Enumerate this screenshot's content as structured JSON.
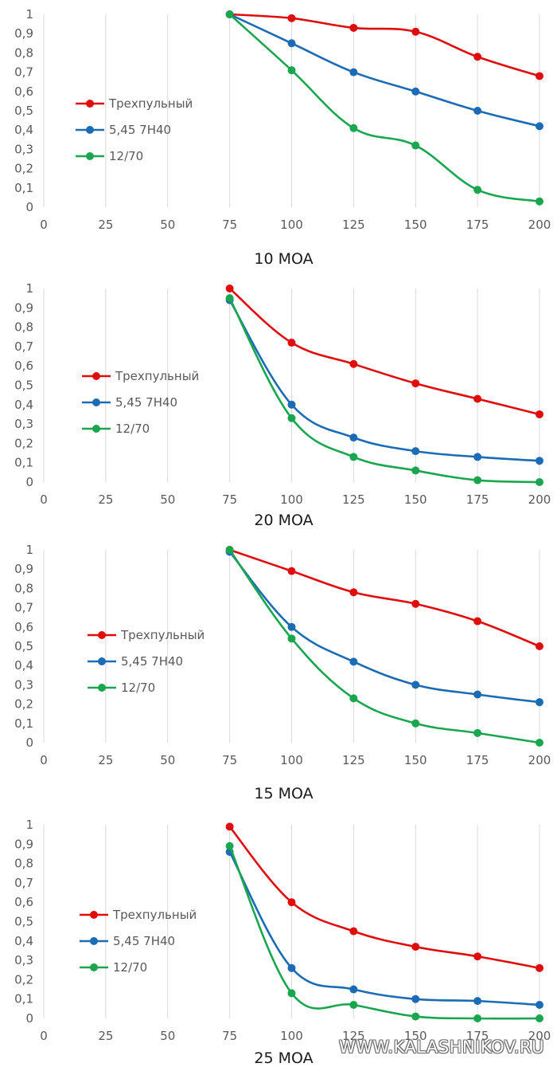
{
  "chart_data": [
    {
      "type": "line",
      "title": "10 MOA",
      "x": [
        75,
        100,
        125,
        150,
        175,
        200
      ],
      "x_ticks": [
        "0",
        "25",
        "50",
        "75",
        "100",
        "125",
        "150",
        "175",
        "200"
      ],
      "y_ticks": [
        "0",
        "0,1",
        "0,2",
        "0,3",
        "0,4",
        "0,5",
        "0,6",
        "0,7",
        "0,8",
        "0,9",
        "1"
      ],
      "xlim": [
        0,
        200
      ],
      "ylim": [
        0,
        1
      ],
      "grid": "vertical",
      "legend_position": "left",
      "series": [
        {
          "name": "Трехпульный",
          "color": "#e00c0c",
          "values": [
            1.0,
            0.98,
            0.93,
            0.91,
            0.78,
            0.68
          ]
        },
        {
          "name": "5,45 7Н40",
          "color": "#1b6cb5",
          "values": [
            1.0,
            0.85,
            0.7,
            0.6,
            0.5,
            0.42
          ]
        },
        {
          "name": "12/70",
          "color": "#1aa64f",
          "values": [
            1.0,
            0.71,
            0.41,
            0.32,
            0.09,
            0.03
          ]
        }
      ]
    },
    {
      "type": "line",
      "title": "20 MOA",
      "x": [
        75,
        100,
        125,
        150,
        175,
        200
      ],
      "x_ticks": [
        "0",
        "25",
        "50",
        "75",
        "100",
        "125",
        "150",
        "175",
        "200"
      ],
      "y_ticks": [
        "0",
        "0,1",
        "0,2",
        "0,3",
        "0,4",
        "0,5",
        "0,6",
        "0,7",
        "0,8",
        "0,9",
        "1"
      ],
      "xlim": [
        0,
        200
      ],
      "ylim": [
        0,
        1
      ],
      "grid": "vertical",
      "legend_position": "left",
      "series": [
        {
          "name": "Трехпульный",
          "color": "#e00c0c",
          "values": [
            1.0,
            0.72,
            0.61,
            0.51,
            0.43,
            0.35
          ]
        },
        {
          "name": "5,45 7Н40",
          "color": "#1b6cb5",
          "values": [
            0.94,
            0.4,
            0.23,
            0.16,
            0.13,
            0.11
          ]
        },
        {
          "name": "12/70",
          "color": "#1aa64f",
          "values": [
            0.95,
            0.33,
            0.13,
            0.06,
            0.01,
            0.0
          ]
        }
      ]
    },
    {
      "type": "line",
      "title": "15 MOA",
      "x": [
        75,
        100,
        125,
        150,
        175,
        200
      ],
      "x_ticks": [
        "0",
        "25",
        "50",
        "75",
        "100",
        "125",
        "150",
        "175",
        "200"
      ],
      "y_ticks": [
        "0",
        "0,1",
        "0,2",
        "0,3",
        "0,4",
        "0,5",
        "0,6",
        "0,7",
        "0,8",
        "0,9",
        "1"
      ],
      "xlim": [
        0,
        200
      ],
      "ylim": [
        0,
        1
      ],
      "grid": "vertical",
      "legend_position": "left",
      "series": [
        {
          "name": "Трехпульный",
          "color": "#e00c0c",
          "values": [
            1.0,
            0.89,
            0.78,
            0.72,
            0.63,
            0.5
          ]
        },
        {
          "name": "5,45 7Н40",
          "color": "#1b6cb5",
          "values": [
            0.99,
            0.6,
            0.42,
            0.3,
            0.25,
            0.21
          ]
        },
        {
          "name": "12/70",
          "color": "#1aa64f",
          "values": [
            1.0,
            0.54,
            0.23,
            0.1,
            0.05,
            0.0
          ]
        }
      ]
    },
    {
      "type": "line",
      "title": "25 MOA",
      "x": [
        75,
        100,
        125,
        150,
        175,
        200
      ],
      "x_ticks": [
        "0",
        "25",
        "50",
        "75",
        "100",
        "125",
        "150",
        "175",
        "200"
      ],
      "y_ticks": [
        "0",
        "0,1",
        "0,2",
        "0,3",
        "0,4",
        "0,5",
        "0,6",
        "0,7",
        "0,8",
        "0,9",
        "1"
      ],
      "xlim": [
        0,
        200
      ],
      "ylim": [
        0,
        1
      ],
      "grid": "vertical",
      "legend_position": "left",
      "series": [
        {
          "name": "Трехпульный",
          "color": "#e00c0c",
          "values": [
            0.99,
            0.6,
            0.45,
            0.37,
            0.32,
            0.26
          ]
        },
        {
          "name": "5,45 7Н40",
          "color": "#1b6cb5",
          "values": [
            0.86,
            0.26,
            0.15,
            0.1,
            0.09,
            0.07
          ]
        },
        {
          "name": "12/70",
          "color": "#1aa64f",
          "values": [
            0.89,
            0.13,
            0.07,
            0.01,
            0.0,
            0.0
          ]
        }
      ]
    }
  ],
  "watermark": "WWW.KALASHNIKOV.RU"
}
